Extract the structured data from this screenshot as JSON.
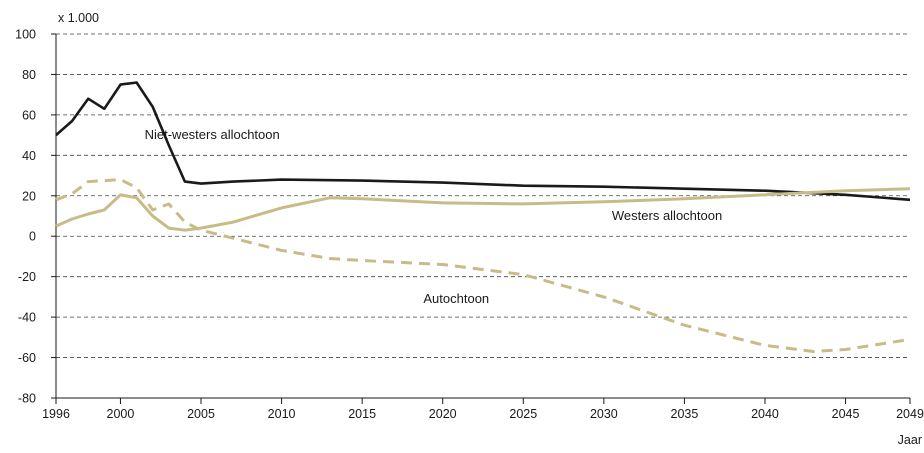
{
  "chart_data": {
    "type": "line",
    "title": "",
    "unit_label": "x 1.000",
    "xlabel": "Jaar",
    "ylabel": "",
    "xlim": [
      1996,
      2049
    ],
    "ylim": [
      -80,
      100
    ],
    "x_ticks": [
      1996,
      2000,
      2005,
      2010,
      2015,
      2020,
      2025,
      2030,
      2035,
      2040,
      2045,
      2049
    ],
    "y_ticks": [
      -80,
      -60,
      -40,
      -20,
      0,
      20,
      40,
      60,
      80,
      100
    ],
    "grid": "horizontal dashed",
    "legend": "none (direct labels on lines)",
    "series": [
      {
        "name": "Niet-westers allochtoon",
        "color": "#1a1a1a",
        "line_style": "solid",
        "points": [
          [
            1996,
            50
          ],
          [
            1997,
            57
          ],
          [
            1998,
            68
          ],
          [
            1999,
            63
          ],
          [
            2000,
            75
          ],
          [
            2001,
            76
          ],
          [
            2002,
            64
          ],
          [
            2003,
            45
          ],
          [
            2004,
            27
          ],
          [
            2005,
            26
          ],
          [
            2007,
            27
          ],
          [
            2010,
            28
          ],
          [
            2015,
            27.5
          ],
          [
            2020,
            26.5
          ],
          [
            2025,
            25
          ],
          [
            2030,
            24.5
          ],
          [
            2035,
            23.5
          ],
          [
            2040,
            22.5
          ],
          [
            2045,
            20.5
          ],
          [
            2049,
            18
          ]
        ]
      },
      {
        "name": "Westers allochtoon",
        "color": "#c7bc87",
        "line_style": "solid",
        "points": [
          [
            1996,
            5
          ],
          [
            1997,
            8.5
          ],
          [
            1998,
            11
          ],
          [
            1999,
            13
          ],
          [
            2000,
            20.5
          ],
          [
            2001,
            19
          ],
          [
            2002,
            10
          ],
          [
            2003,
            4
          ],
          [
            2004,
            3
          ],
          [
            2005,
            4
          ],
          [
            2007,
            7
          ],
          [
            2010,
            14
          ],
          [
            2013,
            19
          ],
          [
            2015,
            18.5
          ],
          [
            2020,
            16.5
          ],
          [
            2025,
            16
          ],
          [
            2030,
            17
          ],
          [
            2035,
            18.5
          ],
          [
            2040,
            20.5
          ],
          [
            2045,
            22.5
          ],
          [
            2049,
            23.5
          ]
        ]
      },
      {
        "name": "Autochtoon",
        "color": "#c7bc87",
        "line_style": "dashed",
        "points": [
          [
            1996,
            18
          ],
          [
            1997,
            21
          ],
          [
            1998,
            27
          ],
          [
            1999,
            27.5
          ],
          [
            2000,
            28
          ],
          [
            2001,
            24
          ],
          [
            2002,
            13
          ],
          [
            2003,
            16
          ],
          [
            2004,
            7
          ],
          [
            2005,
            3
          ],
          [
            2007,
            -1
          ],
          [
            2010,
            -7
          ],
          [
            2013,
            -11
          ],
          [
            2015,
            -12
          ],
          [
            2020,
            -14
          ],
          [
            2025,
            -19
          ],
          [
            2030,
            -30
          ],
          [
            2035,
            -44
          ],
          [
            2040,
            -54
          ],
          [
            2043,
            -57
          ],
          [
            2045,
            -56
          ],
          [
            2049,
            -51
          ]
        ]
      }
    ],
    "annotations": [
      {
        "text": "Niet-westers allochtoon",
        "series": 0
      },
      {
        "text": "Westers allochtoon",
        "series": 1
      },
      {
        "text": "Autochtoon",
        "series": 2
      }
    ]
  }
}
